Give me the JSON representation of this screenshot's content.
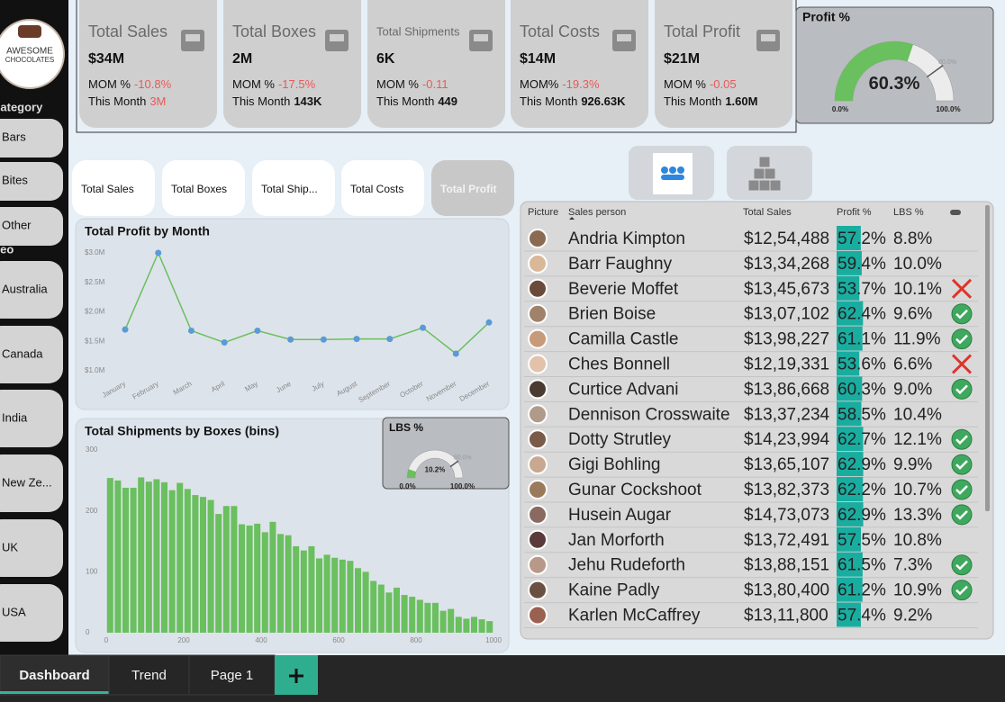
{
  "logo": {
    "line1": "AWESOME",
    "line2": "CHOCOLATES"
  },
  "filters": {
    "category_title": "Category",
    "categories": [
      "Bars",
      "Bites",
      "Other"
    ],
    "geo_title": "Geo",
    "geos": [
      "Australia",
      "Canada",
      "India",
      "New Ze...",
      "UK",
      "USA"
    ]
  },
  "kpis": [
    {
      "title": "Total Sales",
      "value": "$34M",
      "mom_label": "MOM %",
      "mom": "-10.8%",
      "month_label": "This Month",
      "month": "3M"
    },
    {
      "title": "Total Boxes",
      "value": "2M",
      "mom_label": "MOM %",
      "mom": "-17.5%",
      "month_label": "This Month",
      "month": "143K"
    },
    {
      "title": "Total Shipments",
      "value": "6K",
      "mom_label": "MOM %",
      "mom": "-0.11",
      "month_label": "This Month",
      "month": "449"
    },
    {
      "title": "Total Costs",
      "value": "$14M",
      "mom_label": "MOM%",
      "mom": "-19.3%",
      "month_label": "This Month",
      "month": "926.63K"
    },
    {
      "title": "Total Profit",
      "value": "$21M",
      "mom_label": "MOM %",
      "mom": "-0.05",
      "month_label": "This Month",
      "month": "1.60M"
    }
  ],
  "measure_buttons": [
    "Total Sales",
    "Total Boxes",
    "Total Ship...",
    "Total Costs",
    "Total Profit"
  ],
  "chart_data": [
    {
      "type": "line",
      "title": "Total Profit by Month",
      "categories": [
        "January",
        "February",
        "March",
        "April",
        "May",
        "June",
        "July",
        "August",
        "September",
        "October",
        "November",
        "December"
      ],
      "values": [
        1.7,
        3.0,
        1.68,
        1.48,
        1.68,
        1.53,
        1.53,
        1.54,
        1.54,
        1.73,
        1.29,
        1.82
      ],
      "color": "#6abf5e",
      "ylim": [
        1.0,
        3.0
      ],
      "yticks": [
        {
          "value": 1.0,
          "label": "$1.0M"
        },
        {
          "value": 1.5,
          "label": "$1.5M"
        },
        {
          "value": 2.0,
          "label": "$2.0M"
        },
        {
          "value": 2.5,
          "label": "$2.5M"
        },
        {
          "value": 3.0,
          "label": "$3.0M"
        }
      ]
    },
    {
      "type": "histogram",
      "title": "Total Shipments by Boxes (bins)",
      "bins": [
        0,
        20,
        40,
        60,
        80,
        100,
        120,
        140,
        160,
        180,
        200,
        220,
        240,
        260,
        280,
        300,
        320,
        340,
        360,
        380,
        400,
        420,
        440,
        460,
        480,
        500,
        520,
        540,
        560,
        580,
        600,
        620,
        640,
        660,
        680,
        700,
        720,
        740,
        760,
        780,
        800,
        820,
        840,
        860,
        880,
        900,
        920,
        940,
        960,
        980,
        1000
      ],
      "values": [
        254,
        250,
        238,
        238,
        255,
        248,
        252,
        247,
        234,
        246,
        236,
        226,
        223,
        218,
        195,
        208,
        208,
        178,
        176,
        179,
        165,
        182,
        162,
        160,
        142,
        135,
        142,
        122,
        128,
        123,
        120,
        118,
        106,
        100,
        85,
        79,
        66,
        74,
        62,
        59,
        54,
        49,
        49,
        36,
        39,
        26,
        23,
        26,
        22,
        19
      ],
      "color": "#6abf5e",
      "xlim": [
        0,
        1000
      ],
      "xticks": [
        0,
        200,
        400,
        600,
        800,
        1000
      ],
      "ylim": [
        0,
        300
      ],
      "yticks": [
        0,
        100,
        200,
        300
      ]
    },
    {
      "type": "gauge",
      "title": "Profit %",
      "values": [
        60.3
      ],
      "value_labels": [
        "60.3%"
      ],
      "color": "#6abf5e",
      "ylim": [
        0,
        100
      ],
      "yticks": [
        {
          "value": 0,
          "label": "0.0%"
        },
        {
          "value": 80,
          "label": "80.0%"
        },
        {
          "value": 100,
          "label": "100.0%"
        }
      ]
    },
    {
      "type": "gauge",
      "title": "LBS %",
      "values": [
        10.2
      ],
      "value_labels": [
        "10.2%"
      ],
      "color": "#6abf5e",
      "ylim": [
        0,
        100
      ],
      "yticks": [
        {
          "value": 0,
          "label": "0.0%"
        },
        {
          "value": 80,
          "label": "80.0%"
        },
        {
          "value": 100,
          "label": "100.0%"
        }
      ]
    }
  ],
  "table": {
    "columns": [
      "Picture",
      "Sales person",
      "Total Sales",
      "Profit %",
      "LBS %"
    ],
    "rows": [
      {
        "name": "Andria Kimpton",
        "total_sales": "$12,54,488",
        "profit_pct": "57.2%",
        "lbs_pct": "8.8%"
      },
      {
        "name": "Barr Faughny",
        "total_sales": "$13,34,268",
        "profit_pct": "59.4%",
        "lbs_pct": "10.0%"
      },
      {
        "name": "Beverie Moffet",
        "total_sales": "$13,45,673",
        "profit_pct": "53.7%",
        "lbs_pct": "10.1%",
        "status": "cross"
      },
      {
        "name": "Brien Boise",
        "total_sales": "$13,07,102",
        "profit_pct": "62.4%",
        "lbs_pct": "9.6%",
        "status": "check"
      },
      {
        "name": "Camilla Castle",
        "total_sales": "$13,98,227",
        "profit_pct": "61.1%",
        "lbs_pct": "11.9%",
        "status": "check"
      },
      {
        "name": "Ches Bonnell",
        "total_sales": "$12,19,331",
        "profit_pct": "53.6%",
        "lbs_pct": "6.6%",
        "status": "cross"
      },
      {
        "name": "Curtice Advani",
        "total_sales": "$13,86,668",
        "profit_pct": "60.3%",
        "lbs_pct": "9.0%",
        "status": "check"
      },
      {
        "name": "Dennison Crosswaite",
        "total_sales": "$13,37,234",
        "profit_pct": "58.5%",
        "lbs_pct": "10.4%"
      },
      {
        "name": "Dotty Strutley",
        "total_sales": "$14,23,994",
        "profit_pct": "62.7%",
        "lbs_pct": "12.1%",
        "status": "check"
      },
      {
        "name": "Gigi Bohling",
        "total_sales": "$13,65,107",
        "profit_pct": "62.9%",
        "lbs_pct": "9.9%",
        "status": "check"
      },
      {
        "name": "Gunar Cockshoot",
        "total_sales": "$13,82,373",
        "profit_pct": "62.2%",
        "lbs_pct": "10.7%",
        "status": "check"
      },
      {
        "name": "Husein Augar",
        "total_sales": "$14,73,073",
        "profit_pct": "62.9%",
        "lbs_pct": "13.3%",
        "status": "check"
      },
      {
        "name": "Jan Morforth",
        "total_sales": "$13,72,491",
        "profit_pct": "57.5%",
        "lbs_pct": "10.8%"
      },
      {
        "name": "Jehu Rudeforth",
        "total_sales": "$13,88,151",
        "profit_pct": "61.5%",
        "lbs_pct": "7.3%",
        "status": "check"
      },
      {
        "name": "Kaine Padly",
        "total_sales": "$13,80,400",
        "profit_pct": "61.2%",
        "lbs_pct": "10.9%",
        "status": "check"
      },
      {
        "name": "Karlen McCaffrey",
        "total_sales": "$13,11,800",
        "profit_pct": "57.4%",
        "lbs_pct": "9.2%"
      }
    ]
  },
  "tabs": [
    "Dashboard",
    "Trend",
    "Page 1"
  ]
}
